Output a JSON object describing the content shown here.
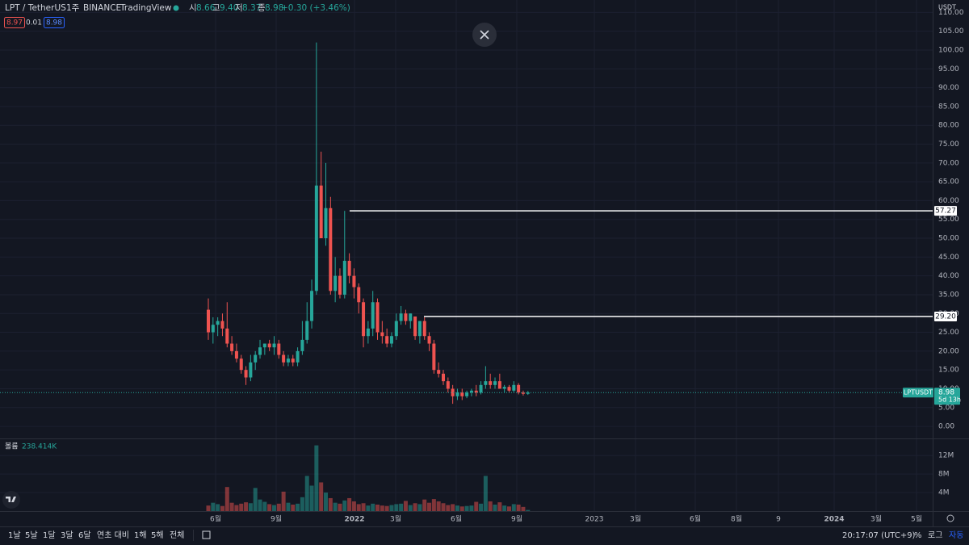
{
  "header": {
    "symbol": "LPT / TetherUS",
    "interval": "1주",
    "exchange": "BINANCE",
    "source": "TradingView",
    "open_label": "시",
    "open": "8.66",
    "high_label": "고",
    "high": "9.40",
    "low_label": "저",
    "low": "8.37",
    "close_label": "종",
    "close": "8.98",
    "change": "+0.30 (+3.46%)",
    "bid": "8.97",
    "spread": "0.01",
    "ask": "8.98",
    "currency": "USDT",
    "volume_title": "볼륨",
    "volume_label": "238.414K"
  },
  "chart_data": {
    "type": "candlestick",
    "up_color": "#26a69a",
    "down_color": "#ef5350",
    "candles": [
      [
        31,
        34,
        23,
        25
      ],
      [
        25,
        29,
        22,
        27
      ],
      [
        27,
        29,
        24,
        28
      ],
      [
        28,
        30,
        24,
        26
      ],
      [
        26,
        33,
        21,
        22
      ],
      [
        22,
        24,
        19,
        20
      ],
      [
        20,
        22,
        17,
        18
      ],
      [
        18,
        19,
        14,
        15
      ],
      [
        15,
        16,
        11,
        13
      ],
      [
        13,
        19,
        12,
        17
      ],
      [
        17,
        20,
        15,
        19
      ],
      [
        19,
        23,
        18,
        21
      ],
      [
        21,
        22,
        19,
        22
      ],
      [
        22,
        23,
        20,
        21
      ],
      [
        21,
        24,
        19,
        22
      ],
      [
        22,
        23,
        18,
        19
      ],
      [
        19,
        20,
        16,
        17
      ],
      [
        17,
        19,
        16,
        18
      ],
      [
        18,
        19,
        16,
        17
      ],
      [
        17,
        21,
        16,
        20
      ],
      [
        20,
        28,
        19,
        23
      ],
      [
        23,
        33,
        22,
        28
      ],
      [
        28,
        39,
        26,
        36
      ],
      [
        36,
        102,
        35,
        64
      ],
      [
        64,
        73,
        50,
        50
      ],
      [
        50,
        70,
        48,
        58
      ],
      [
        58,
        61,
        35,
        36
      ],
      [
        36,
        45,
        33,
        40
      ],
      [
        40,
        42,
        34,
        35
      ],
      [
        35,
        57.27,
        34,
        44
      ],
      [
        44,
        46,
        38,
        40
      ],
      [
        40,
        42,
        34,
        37
      ],
      [
        37,
        38,
        30,
        33
      ],
      [
        33,
        34,
        21,
        24
      ],
      [
        24,
        28,
        22,
        26
      ],
      [
        26,
        36,
        24,
        33
      ],
      [
        33,
        34,
        23,
        25
      ],
      [
        25,
        28,
        22,
        24
      ],
      [
        24,
        26,
        21,
        22
      ],
      [
        22,
        25,
        21,
        24
      ],
      [
        24,
        30,
        23,
        28
      ],
      [
        28,
        32,
        27,
        30
      ],
      [
        30,
        31,
        27,
        28
      ],
      [
        28,
        30,
        26,
        30
      ],
      [
        29.2,
        29.2,
        23,
        24
      ],
      [
        24,
        28,
        22,
        28
      ],
      [
        28,
        29,
        23,
        24
      ],
      [
        24,
        25,
        20,
        22
      ],
      [
        22,
        23,
        14,
        15
      ],
      [
        15,
        17,
        13,
        14
      ],
      [
        14,
        15,
        11,
        12
      ],
      [
        12,
        13,
        9,
        10
      ],
      [
        10,
        11,
        6,
        8
      ],
      [
        8,
        10,
        7,
        9
      ],
      [
        9,
        10,
        7,
        8
      ],
      [
        8,
        9.5,
        7.5,
        9
      ],
      [
        9,
        10,
        8,
        9.5
      ],
      [
        9.5,
        11,
        8,
        9
      ],
      [
        9,
        12,
        8.5,
        11
      ],
      [
        11,
        16,
        10,
        12
      ],
      [
        12,
        14,
        10,
        11
      ],
      [
        11,
        13,
        10,
        12
      ],
      [
        12,
        14,
        10,
        10
      ],
      [
        10,
        11,
        9,
        10.5
      ],
      [
        10.5,
        11,
        9,
        9.5
      ],
      [
        9.5,
        12,
        9,
        11
      ],
      [
        11,
        11.5,
        8.5,
        9
      ],
      [
        9,
        9.5,
        8.2,
        8.66
      ],
      [
        8.66,
        9.4,
        8.37,
        8.98
      ]
    ],
    "volumes": [
      1200000,
      1800000,
      1500000,
      1100000,
      5200000,
      1800000,
      1300000,
      1600000,
      1900000,
      1700000,
      5000000,
      2500000,
      2000000,
      1500000,
      1300000,
      1600000,
      4200000,
      1800000,
      1400000,
      1600000,
      3000000,
      7600000,
      5500000,
      14200000,
      6200000,
      4000000,
      2800000,
      1800000,
      1600000,
      2300000,
      2800000,
      2100000,
      1500000,
      1700000,
      1200000,
      1600000,
      1400000,
      1200000,
      1100000,
      1300000,
      1500000,
      1600000,
      2200000,
      1300000,
      1700000,
      1500000,
      2500000,
      1800000,
      2600000,
      2100000,
      1700000,
      1300000,
      1500000,
      1200000,
      1000000,
      1100000,
      1200000,
      2000000,
      1600000,
      7600000,
      2100000,
      1400000,
      1900000,
      1200000,
      1000000,
      1500000,
      1400000,
      900000,
      238414
    ],
    "ylim": [
      -3.2,
      113.3
    ],
    "yticks": [
      {
        "value": 0,
        "label": "0.00"
      },
      {
        "value": 5,
        "label": "5.00"
      },
      {
        "value": 10,
        "label": "10.00"
      },
      {
        "value": 15,
        "label": "15.00"
      },
      {
        "value": 20,
        "label": "20.00"
      },
      {
        "value": 25,
        "label": "25.00"
      },
      {
        "value": 30,
        "label": "30.00"
      },
      {
        "value": 35,
        "label": "35.00"
      },
      {
        "value": 40,
        "label": "40.00"
      },
      {
        "value": 45,
        "label": "45.00"
      },
      {
        "value": 50,
        "label": "50.00"
      },
      {
        "value": 55,
        "label": "55.00"
      },
      {
        "value": 60,
        "label": "60.00"
      },
      {
        "value": 65,
        "label": "65.00"
      },
      {
        "value": 70,
        "label": "70.00"
      },
      {
        "value": 75,
        "label": "75.00"
      },
      {
        "value": 80,
        "label": "80.00"
      },
      {
        "value": 85,
        "label": "85.00"
      },
      {
        "value": 90,
        "label": "90.00"
      },
      {
        "value": 95,
        "label": "95.00"
      },
      {
        "value": 100,
        "label": "100.00"
      },
      {
        "value": 105,
        "label": "105.00"
      },
      {
        "value": 110,
        "label": "110.00"
      }
    ],
    "volume_ylim": [
      0,
      15700000
    ],
    "volume_yticks": [
      {
        "value": 4000000,
        "label": "4M"
      },
      {
        "value": 8000000,
        "label": "8M"
      },
      {
        "value": 12000000,
        "label": "12M"
      }
    ],
    "levels": [
      {
        "value": 57.27,
        "label": "57.27"
      },
      {
        "value": 29.2,
        "label": "29.20"
      }
    ],
    "last_price": {
      "value": 8.98,
      "label": "8.98"
    },
    "last_symbol": "LPTUSDT",
    "countdown": "5d 13h",
    "x_labels": [
      "6월",
      "9월",
      "2022",
      "3월",
      "6월",
      "9월",
      "2023",
      "3월",
      "6월",
      "8월",
      "9",
      "2024",
      "3월",
      "5월"
    ]
  },
  "toolbar": {
    "ranges": [
      "1날",
      "5날",
      "1달",
      "3달",
      "6달",
      "연초 대비",
      "1해",
      "5해",
      "전체"
    ],
    "clock": "20:17:07 (UTC+9)",
    "percent": "%",
    "log": "로그",
    "auto": "자동"
  }
}
